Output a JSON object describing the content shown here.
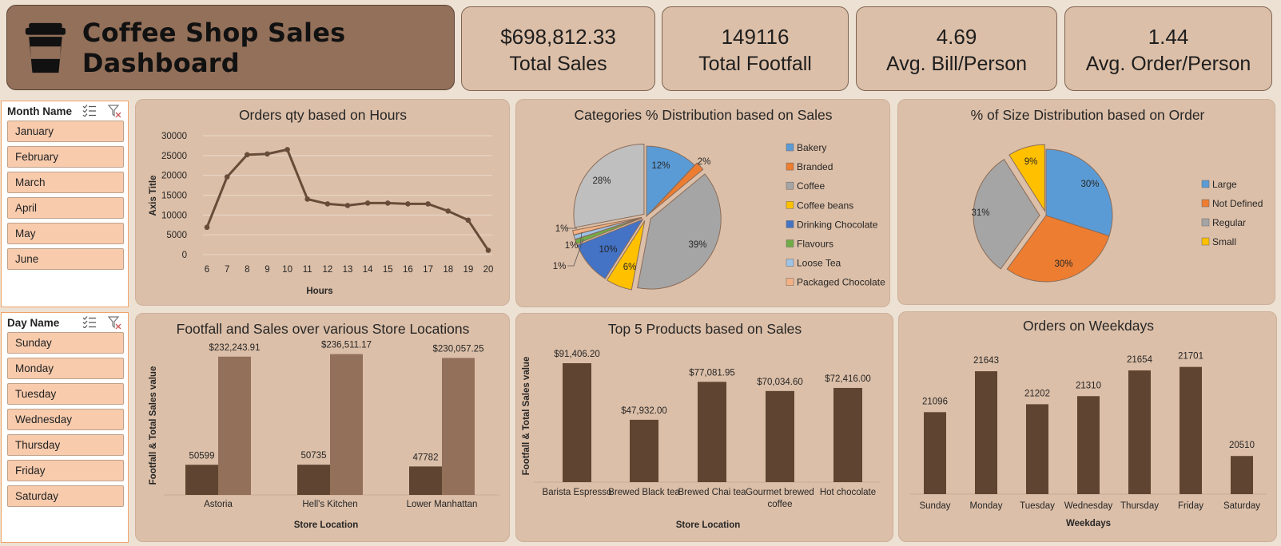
{
  "title": "Coffee Shop Sales Dashboard",
  "kpis": [
    {
      "value": "$698,812.33",
      "label": "Total Sales"
    },
    {
      "value": "149116",
      "label": "Total Footfall"
    },
    {
      "value": "4.69",
      "label": "Avg. Bill/Person"
    },
    {
      "value": "1.44",
      "label": "Avg. Order/Person"
    }
  ],
  "slicers": {
    "month": {
      "title": "Month Name",
      "items": [
        "January",
        "February",
        "March",
        "April",
        "May",
        "June"
      ]
    },
    "day": {
      "title": "Day Name",
      "items": [
        "Sunday",
        "Monday",
        "Tuesday",
        "Wednesday",
        "Thursday",
        "Friday",
        "Saturday"
      ]
    }
  },
  "colors": {
    "dark_bar": "#5f4531",
    "light_bar": "#93705a",
    "panel": "#dcbfa8",
    "line": "#674d39"
  },
  "chart_data": [
    {
      "id": "hours",
      "type": "line",
      "title": "Orders qty based on Hours",
      "xlabel": "Hours",
      "ylabel": "Axis Title",
      "x": [
        6,
        7,
        8,
        9,
        10,
        11,
        12,
        13,
        14,
        15,
        16,
        17,
        18,
        19,
        20
      ],
      "values": [
        6900,
        19600,
        25200,
        25400,
        26500,
        14000,
        12800,
        12400,
        13000,
        13000,
        12800,
        12800,
        11000,
        8700,
        1100
      ],
      "ylim": [
        0,
        30000
      ],
      "yticks": [
        0,
        5000,
        10000,
        15000,
        20000,
        25000,
        30000
      ],
      "grid": true
    },
    {
      "id": "categories",
      "type": "pie",
      "title": "Categories % Distribution based on Sales",
      "legend": "right",
      "slices": [
        {
          "label": "Bakery",
          "value": 12,
          "text": "12%",
          "color": "#5b9bd5"
        },
        {
          "label": "Branded",
          "value": 2,
          "text": "2%",
          "color": "#ed7d31"
        },
        {
          "label": "Coffee",
          "value": 39,
          "text": "39%",
          "color": "#a5a5a5"
        },
        {
          "label": "Coffee beans",
          "value": 6,
          "text": "6%",
          "color": "#ffc000"
        },
        {
          "label": "Drinking Chocolate",
          "value": 10,
          "text": "10%",
          "color": "#4472c4"
        },
        {
          "label": "Flavours",
          "value": 1,
          "text": "1%",
          "color": "#70ad47"
        },
        {
          "label": "Loose Tea",
          "value": 1,
          "text": "1%",
          "color": "#9dc3e6"
        },
        {
          "label": "Packaged Chocolate",
          "value": 1,
          "text": "1%",
          "color": "#f4b183"
        },
        {
          "label": "",
          "value": 28,
          "text": "28%",
          "color": "#bfbfbf"
        }
      ]
    },
    {
      "id": "size",
      "type": "pie",
      "title": "% of Size Distribution based on Order",
      "legend": "right",
      "slices": [
        {
          "label": "Large",
          "value": 30,
          "text": "30%",
          "color": "#5b9bd5"
        },
        {
          "label": "Not Defined",
          "value": 30,
          "text": "30%",
          "color": "#ed7d31"
        },
        {
          "label": "Regular",
          "value": 31,
          "text": "31%",
          "color": "#a5a5a5"
        },
        {
          "label": "Small",
          "value": 9,
          "text": "9%",
          "color": "#ffc000"
        }
      ]
    },
    {
      "id": "locations",
      "type": "bar",
      "title": "Footfall and Sales over various Store Locations",
      "xlabel": "Store Location",
      "ylabel": "Footfall & Total Sales value",
      "categories": [
        "Astoria",
        "Hell's Kitchen",
        "Lower Manhattan"
      ],
      "series": [
        {
          "values": [
            50599,
            50735,
            47782
          ],
          "labels": [
            "50599",
            "50735",
            "47782"
          ]
        },
        {
          "values": [
            232243.91,
            236511.17,
            230057.25
          ],
          "labels": [
            "$232,243.91",
            "$236,511.17",
            "$230,057.25"
          ]
        }
      ],
      "ylim": [
        0,
        240000
      ]
    },
    {
      "id": "products",
      "type": "bar",
      "title": "Top 5 Products based on Sales",
      "xlabel": "Store Location",
      "ylabel": "Footfall & Total Sales value",
      "categories": [
        "Barista Espresso",
        "Brewed Black tea",
        "Brewed Chai tea",
        "Gourmet brewed coffee",
        "Hot chocolate"
      ],
      "values": [
        91406.2,
        47932.0,
        77081.95,
        70034.6,
        72416.0
      ],
      "labels": [
        "$91,406.20",
        "$47,932.00",
        "$77,081.95",
        "$70,034.60",
        "$72,416.00"
      ],
      "ylim": [
        0,
        100000
      ]
    },
    {
      "id": "weekdays",
      "type": "bar",
      "title": "Orders on Weekdays",
      "xlabel": "Weekdays",
      "categories": [
        "Sunday",
        "Monday",
        "Tuesday",
        "Wednesday",
        "Thursday",
        "Friday",
        "Saturday"
      ],
      "values": [
        21096,
        21643,
        21202,
        21310,
        21654,
        21701,
        20510
      ],
      "labels": [
        "21096",
        "21643",
        "21202",
        "21310",
        "21654",
        "21701",
        "20510"
      ],
      "ylim": [
        20000,
        21900
      ]
    }
  ]
}
